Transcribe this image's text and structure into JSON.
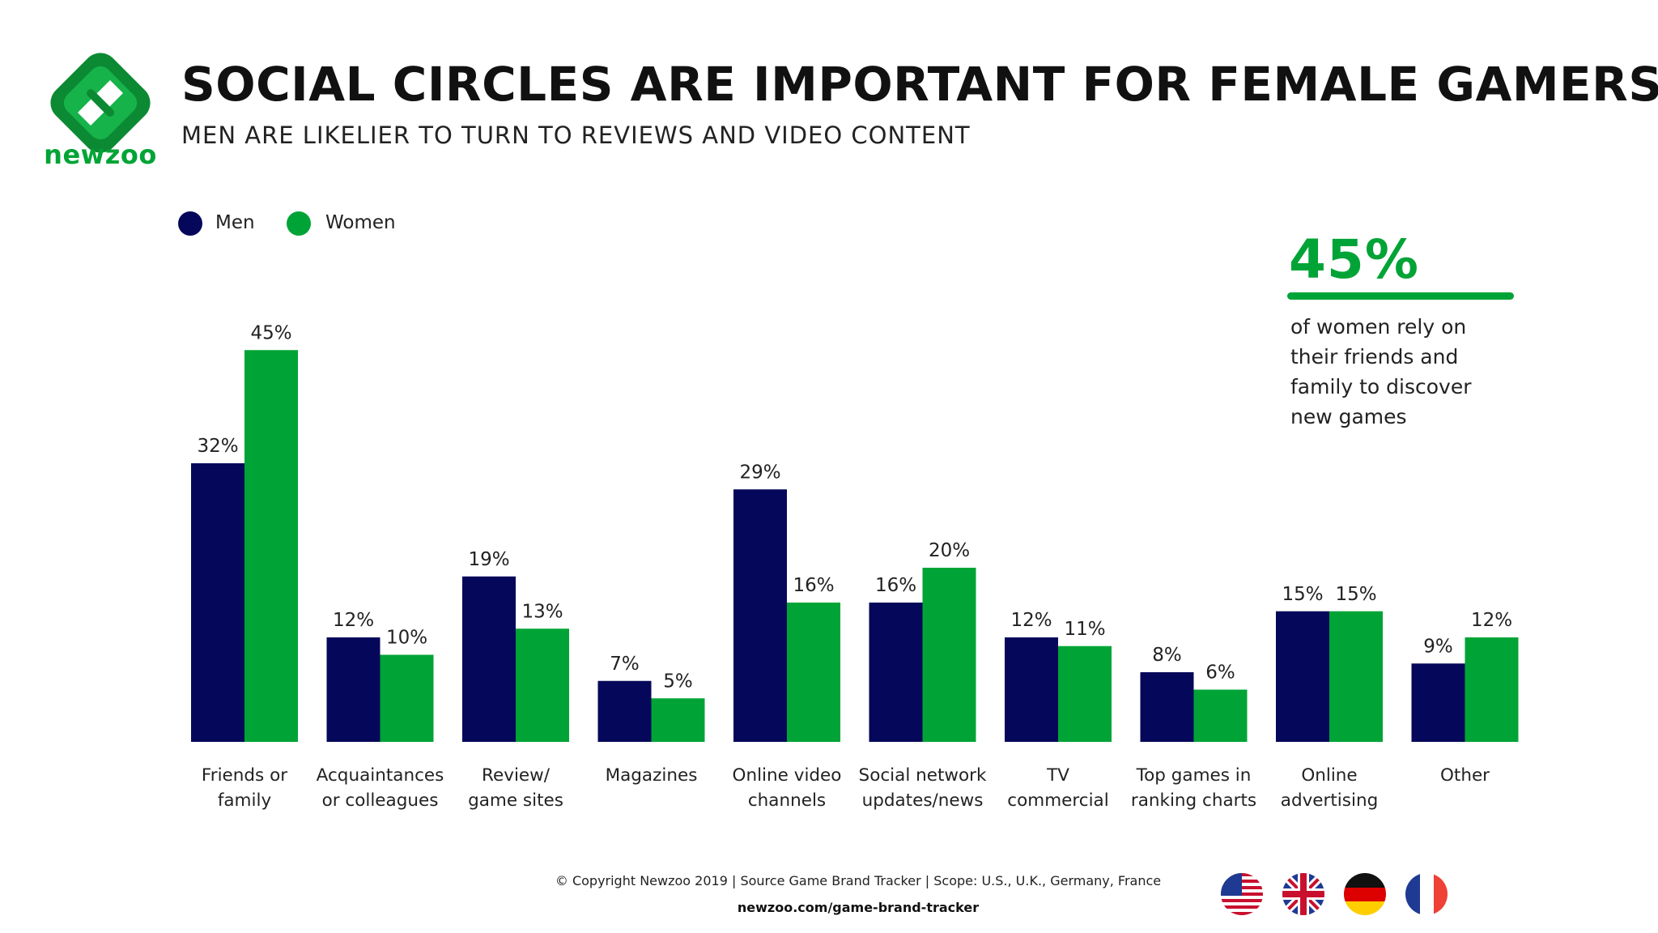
{
  "brand": {
    "name": "newzoo"
  },
  "header": {
    "title": "SOCIAL CIRCLES ARE IMPORTANT FOR FEMALE GAMERS",
    "subtitle": "MEN ARE LIKELIER TO TURN TO REVIEWS AND VIDEO CONTENT"
  },
  "colors": {
    "men": "#05085a",
    "women": "#00a436"
  },
  "callout": {
    "value": "45%",
    "text": "of women rely on their friends and family to discover new games"
  },
  "chart_data": {
    "type": "bar",
    "title": "SOCIAL CIRCLES ARE IMPORTANT FOR FEMALE GAMERS",
    "subtitle": "MEN ARE LIKELIER TO TURN TO REVIEWS AND VIDEO CONTENT",
    "xlabel": "",
    "ylabel": "",
    "ylim": [
      0,
      50
    ],
    "grid": false,
    "legend_position": "top-left",
    "categories": [
      [
        "Friends or",
        "family"
      ],
      [
        "Acquaintances",
        "or colleagues"
      ],
      [
        "Review/",
        "game sites"
      ],
      [
        "Magazines"
      ],
      [
        "Online video",
        "channels"
      ],
      [
        "Social network",
        "updates/news"
      ],
      [
        "TV",
        "commercial"
      ],
      [
        "Top games in",
        "ranking charts"
      ],
      [
        "Online",
        "advertising"
      ],
      [
        "Other"
      ]
    ],
    "series": [
      {
        "name": "Men",
        "values": [
          32,
          12,
          19,
          7,
          29,
          16,
          12,
          8,
          15,
          9
        ],
        "labels": [
          "32%",
          "12%",
          "19%",
          "7%",
          "29%",
          "16%",
          "12%",
          "8%",
          "15%",
          "9%"
        ]
      },
      {
        "name": "Women",
        "values": [
          45,
          10,
          13,
          5,
          16,
          20,
          11,
          6,
          15,
          12
        ],
        "labels": [
          "45%",
          "10%",
          "13%",
          "5%",
          "16%",
          "20%",
          "11%",
          "6%",
          "15%",
          "12%"
        ]
      }
    ]
  },
  "footer": {
    "copyright": "© Copyright Newzoo 2019 | Source Game Brand Tracker | Scope: U.S., U.K., Germany, France",
    "url": "newzoo.com/game-brand-tracker"
  },
  "flags": [
    "us-flag-icon",
    "uk-flag-icon",
    "germany-flag-icon",
    "france-flag-icon"
  ]
}
